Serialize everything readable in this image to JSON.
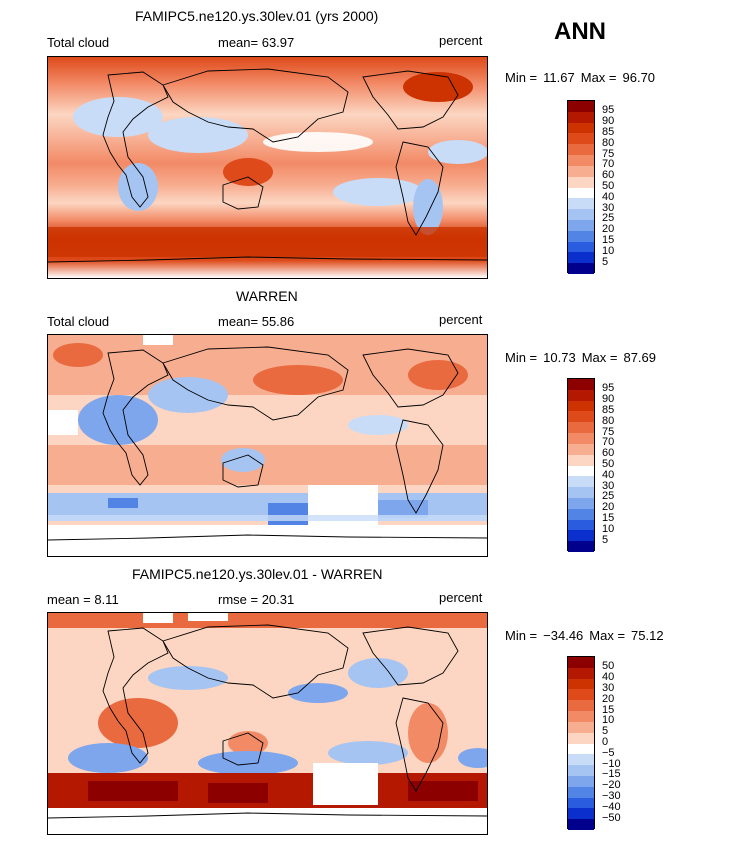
{
  "season_label": "ANN",
  "panels": [
    {
      "title": "FAMIPC5.ne120.ys.30lev.01 (yrs 2000)",
      "left_label": "Total cloud",
      "center_label": "mean=  63.97",
      "right_label": "percent",
      "min_label": "Min =",
      "min_value": "11.67",
      "max_label": "Max =",
      "max_value": "96.70"
    },
    {
      "title": "WARREN",
      "left_label": "Total cloud",
      "center_label": "mean=  55.86",
      "right_label": "percent",
      "min_label": "Min =",
      "min_value": "10.73",
      "max_label": "Max =",
      "max_value": "87.69"
    },
    {
      "title": "FAMIPC5.ne120.ys.30lev.01 - WARREN",
      "left_label": "mean =   8.11",
      "center_label": "rmse =  20.31",
      "right_label": "percent",
      "min_label": "Min =",
      "min_value": "−34.46",
      "max_label": "Max =",
      "max_value": "75.12"
    }
  ],
  "colorbar_abs": {
    "labels": [
      "95",
      "90",
      "85",
      "80",
      "75",
      "70",
      "60",
      "50",
      "40",
      "30",
      "25",
      "20",
      "15",
      "10",
      "5"
    ],
    "colors": [
      "#8c0000",
      "#b41800",
      "#cc3300",
      "#de4a1a",
      "#ea6a40",
      "#f28a66",
      "#f7ad90",
      "#fcd6c2",
      "#ffffff",
      "#c8dcf7",
      "#a6c4f2",
      "#7ea6ec",
      "#5284e6",
      "#2a5ce0",
      "#0b2fcc",
      "#00008c"
    ]
  },
  "colorbar_diff": {
    "labels": [
      "50",
      "40",
      "30",
      "20",
      "15",
      "10",
      "5",
      "0",
      "−5",
      "−10",
      "−15",
      "−20",
      "−30",
      "−40",
      "−50"
    ],
    "colors": [
      "#8c0000",
      "#b41800",
      "#cc3300",
      "#de4a1a",
      "#ea6a40",
      "#f28a66",
      "#f7ad90",
      "#fcd6c2",
      "#ffffff",
      "#c8dcf7",
      "#a6c4f2",
      "#7ea6ec",
      "#5284e6",
      "#2a5ce0",
      "#0b2fcc",
      "#00008c"
    ]
  }
}
